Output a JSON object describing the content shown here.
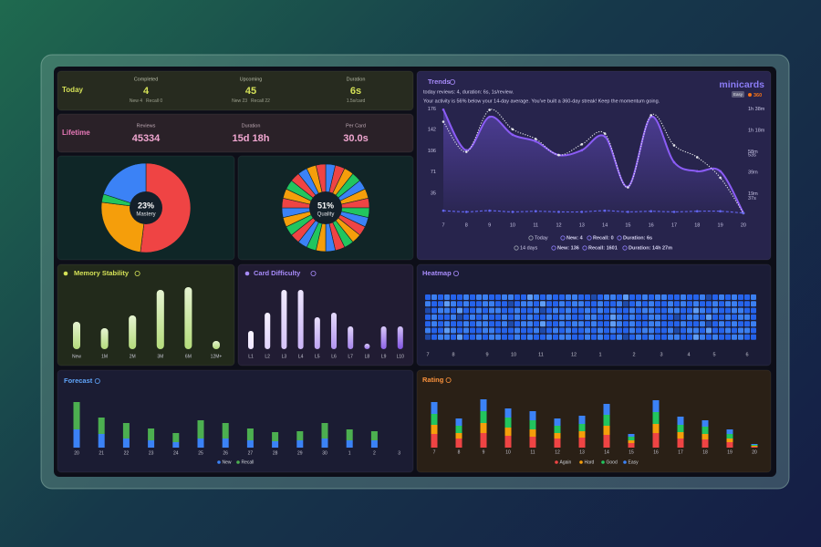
{
  "today": {
    "title": "Today",
    "items": [
      {
        "label": "Completed",
        "value": 4,
        "details": [
          "New 4",
          "Recall 0"
        ]
      },
      {
        "label": "Upcoming",
        "value": 45,
        "details": [
          "New 23",
          "Recall 22"
        ]
      },
      {
        "label": "Duration",
        "value": "6s",
        "details": [
          "1.5s/card"
        ]
      }
    ]
  },
  "lifetime": {
    "title": "Lifetime",
    "items": [
      {
        "label": "Reviews",
        "value": 45334
      },
      {
        "label": "Duration",
        "value": "15d 18h"
      },
      {
        "label": "Per Card",
        "value": "30.0s"
      }
    ]
  },
  "chart_data": [
    {
      "type": "pie",
      "center_text": "23%",
      "center_label": "Mastery",
      "values": [
        52,
        25,
        3,
        20
      ],
      "colors": [
        "#ef4444",
        "#f59e0b",
        "#22c55e",
        "#3b82f6"
      ]
    },
    {
      "type": "pie",
      "center_text": "51%",
      "center_label": "Quality",
      "values": [
        1,
        1,
        1,
        1,
        1,
        1,
        1,
        1,
        1,
        1,
        1,
        1,
        1,
        1,
        1,
        1,
        1,
        1,
        1,
        1,
        1,
        1,
        1,
        1,
        1,
        1,
        1,
        1
      ],
      "colors": [
        "#3b82f6",
        "#ef4444",
        "#f59e0b",
        "#22c55e",
        "#3b82f6",
        "#f59e0b",
        "#ef4444",
        "#22c55e",
        "#3b82f6",
        "#ef4444",
        "#f59e0b",
        "#22c55e",
        "#ef4444",
        "#3b82f6",
        "#f59e0b",
        "#22c55e",
        "#3b82f6",
        "#ef4444",
        "#22c55e",
        "#f59e0b",
        "#3b82f6",
        "#ef4444",
        "#f59e0b",
        "#22c55e",
        "#ef4444",
        "#3b82f6",
        "#f59e0b",
        "#ef4444"
      ]
    },
    {
      "type": "line",
      "title": "Trends",
      "subtitle": "today reviews: 4, duration: 6s, 1s/review.",
      "message": "Your activity is 56% below your 14-day average. You've built a 360-day streak! Keep the momentum going.",
      "brand": "minicards",
      "badge": "Easy",
      "streak": 360,
      "categories": [
        "7",
        "8",
        "9",
        "10",
        "11",
        "12",
        "13",
        "14",
        "15",
        "16",
        "17",
        "18",
        "19",
        "20"
      ],
      "series": [
        {
          "color": "#8b5cf6",
          "style": "solid",
          "area": true,
          "values": [
            175,
            107,
            163,
            133,
            122,
            99,
            107,
            130,
            46,
            163,
            87,
            72,
            72,
            2
          ]
        },
        {
          "color": "#e5e7eb",
          "style": "dotted",
          "axis": "y2",
          "values": [
            86,
            58,
            97,
            79,
            70,
            55,
            65,
            75,
            25,
            92,
            64,
            53,
            34,
            1
          ]
        },
        {
          "color": "#6366f1",
          "style": "dashed",
          "values": [
            6,
            4,
            6,
            4,
            5,
            4,
            4,
            6,
            4,
            5,
            4,
            5,
            5,
            2
          ]
        }
      ],
      "ylim": [
        0,
        180
      ],
      "yticks": [
        176,
        142,
        106,
        71,
        35
      ],
      "y2lim": [
        0,
        100
      ],
      "y2ticks": [
        {
          "value": 98,
          "label": "1h 38m"
        },
        {
          "value": 78,
          "label": "1h 18m"
        },
        {
          "value": 58,
          "label": "58m"
        },
        {
          "value": 39,
          "label": "39m"
        },
        {
          "value": 19,
          "label": "19m"
        }
      ],
      "y3lim": [
        31,
        71
      ],
      "y3ticks": [
        {
          "value": 53,
          "label": "53s"
        },
        {
          "value": 37,
          "label": "37s"
        }
      ],
      "legend_rows": [
        [
          "Today",
          "New: 4",
          "Recall: 0",
          "Duration: 6s"
        ],
        [
          "14 days",
          "New: 136",
          "Recall: 1601",
          "Duration: 14h 27m"
        ]
      ]
    },
    {
      "type": "bar",
      "title": "Memory Stability",
      "categories": [
        "New",
        "1M",
        "2M",
        "3M",
        "6M",
        "12M+"
      ],
      "values": [
        30,
        23,
        37,
        65,
        68,
        9
      ],
      "color": "#b5dc7c"
    },
    {
      "type": "bar",
      "title": "Card Difficulty",
      "categories": [
        "L1",
        "L2",
        "L3",
        "L4",
        "L5",
        "L6",
        "L7",
        "L8",
        "L9",
        "L10"
      ],
      "values": [
        20,
        40,
        65,
        65,
        35,
        40,
        25,
        6,
        25,
        25
      ],
      "colors": [
        "#eee4ff",
        "#e2d4fc",
        "#d6c4f9",
        "#cab4f6",
        "#bea4f3",
        "#b294f0",
        "#a684ed",
        "#9a74ea",
        "#8e64e7",
        "#8254e4"
      ]
    },
    {
      "type": "heatmap",
      "title": "Heatmap",
      "month_labels": [
        "7",
        "8",
        "9",
        "10",
        "11",
        "12",
        "1",
        "2",
        "3",
        "4",
        "5",
        "6"
      ],
      "colors": [
        "#1e2142",
        "#1f4aa8",
        "#2563eb",
        "#3b7ff0",
        "#5f9df5"
      ],
      "values": [
        [
          2,
          3,
          2,
          3,
          2,
          2,
          3,
          2,
          3,
          3,
          2,
          2,
          3,
          3,
          2,
          2,
          4,
          3,
          2,
          3,
          2,
          2,
          3,
          3,
          2,
          2,
          1,
          2,
          3,
          3,
          2,
          4,
          2,
          2,
          3,
          2,
          3,
          3,
          2,
          2,
          3,
          2,
          2,
          3,
          1,
          2,
          3,
          2,
          3,
          2,
          2,
          3
        ],
        [
          3,
          2,
          2,
          4,
          3,
          2,
          3,
          2,
          2,
          3,
          3,
          2,
          2,
          1,
          2,
          3,
          3,
          2,
          4,
          2,
          2,
          3,
          2,
          3,
          3,
          2,
          2,
          3,
          2,
          2,
          3,
          1,
          2,
          3,
          2,
          3,
          2,
          2,
          3,
          2,
          3,
          2,
          3,
          2,
          2,
          3,
          2,
          3,
          3,
          2,
          2,
          3
        ],
        [
          1,
          2,
          3,
          3,
          2,
          4,
          2,
          2,
          3,
          2,
          3,
          3,
          2,
          2,
          3,
          2,
          2,
          3,
          1,
          2,
          3,
          2,
          3,
          2,
          2,
          3,
          2,
          3,
          2,
          3,
          2,
          2,
          3,
          2,
          3,
          3,
          2,
          2,
          3,
          3,
          2,
          2,
          4,
          3,
          2,
          3,
          2,
          2,
          3,
          3,
          2,
          2
        ],
        [
          2,
          3,
          2,
          2,
          3,
          1,
          2,
          3,
          2,
          3,
          2,
          2,
          3,
          2,
          3,
          2,
          3,
          2,
          2,
          3,
          2,
          3,
          3,
          2,
          2,
          3,
          3,
          2,
          2,
          4,
          3,
          2,
          3,
          2,
          2,
          3,
          3,
          2,
          2,
          1,
          2,
          3,
          3,
          2,
          4,
          2,
          2,
          3,
          2,
          3,
          3,
          2
        ],
        [
          2,
          3,
          2,
          3,
          2,
          2,
          3,
          2,
          3,
          3,
          2,
          2,
          3,
          1,
          2,
          3,
          3,
          2,
          4,
          2,
          2,
          3,
          2,
          3,
          3,
          2,
          3,
          2,
          2,
          4,
          3,
          2,
          3,
          2,
          2,
          3,
          3,
          2,
          2,
          2,
          3,
          2,
          2,
          3,
          1,
          2,
          3,
          2,
          3,
          2,
          2,
          3
        ],
        [
          3,
          2,
          2,
          4,
          3,
          2,
          3,
          2,
          2,
          3,
          3,
          2,
          2,
          2,
          3,
          2,
          2,
          3,
          1,
          2,
          3,
          2,
          3,
          2,
          2,
          3,
          2,
          3,
          2,
          3,
          2,
          2,
          3,
          2,
          3,
          3,
          2,
          2,
          3,
          1,
          2,
          3,
          3,
          2,
          4,
          2,
          2,
          3,
          2,
          3,
          3,
          2
        ],
        [
          1,
          2,
          3,
          3,
          2,
          4,
          2,
          2,
          3,
          2,
          3,
          3,
          2,
          2,
          3,
          2,
          3,
          2,
          2,
          3,
          2,
          3,
          3,
          2,
          2,
          3,
          2,
          3,
          2,
          2,
          3,
          1,
          2,
          3,
          2,
          3,
          2,
          2,
          3,
          3,
          2,
          2,
          4,
          3,
          2,
          3,
          2,
          2,
          3,
          3,
          2,
          2
        ]
      ]
    },
    {
      "type": "bar",
      "title": "Forecast",
      "categories": [
        "20",
        "21",
        "22",
        "23",
        "24",
        "25",
        "26",
        "27",
        "28",
        "29",
        "30",
        "1",
        "2",
        "3"
      ],
      "series": [
        {
          "name": "New",
          "color": "#3b82f6",
          "values": [
            20,
            15,
            10,
            8,
            6,
            10,
            10,
            8,
            7,
            8,
            10,
            8,
            8,
            0
          ]
        },
        {
          "name": "Recall",
          "color": "#4caf50",
          "values": [
            30,
            18,
            17,
            13,
            10,
            20,
            17,
            13,
            10,
            10,
            17,
            12,
            10,
            0
          ]
        }
      ]
    },
    {
      "type": "bar",
      "title": "Rating",
      "categories": [
        "7",
        "8",
        "9",
        "10",
        "11",
        "12",
        "13",
        "14",
        "15",
        "16",
        "17",
        "18",
        "19",
        "20"
      ],
      "series": [
        {
          "name": "Again",
          "color": "#ef4444",
          "values": [
            15,
            10,
            16,
            13,
            12,
            10,
            11,
            14,
            5,
            16,
            10,
            9,
            6,
            1
          ]
        },
        {
          "name": "Hard",
          "color": "#f59e0b",
          "values": [
            10,
            6,
            11,
            9,
            8,
            6,
            7,
            10,
            3,
            10,
            7,
            6,
            4,
            1
          ]
        },
        {
          "name": "Good",
          "color": "#22c55e",
          "values": [
            12,
            8,
            13,
            11,
            10,
            8,
            8,
            12,
            4,
            13,
            8,
            8,
            5,
            1
          ]
        },
        {
          "name": "Easy",
          "color": "#3b82f6",
          "values": [
            13,
            8,
            13,
            10,
            10,
            8,
            9,
            12,
            3,
            13,
            9,
            7,
            5,
            1
          ]
        }
      ]
    }
  ]
}
